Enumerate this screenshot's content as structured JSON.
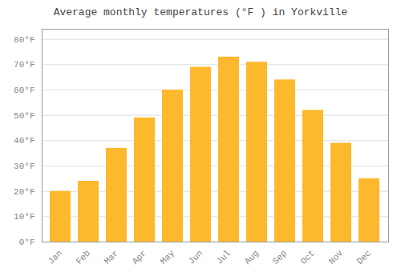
{
  "chart_data": {
    "type": "bar",
    "title": "Average monthly temperatures (°F ) in Yorkville",
    "categories": [
      "Jan",
      "Feb",
      "Mar",
      "Apr",
      "May",
      "Jun",
      "Jul",
      "Aug",
      "Sep",
      "Oct",
      "Nov",
      "Dec"
    ],
    "values": [
      20,
      24,
      37,
      49,
      60,
      69,
      73,
      71,
      64,
      52,
      39,
      25
    ],
    "color": "#FDB92E",
    "ylim": [
      0,
      84
    ],
    "yticks": [
      {
        "value": 0,
        "label": "0°F"
      },
      {
        "value": 10,
        "label": "10°F"
      },
      {
        "value": 20,
        "label": "20°F"
      },
      {
        "value": 30,
        "label": "30°F"
      },
      {
        "value": 40,
        "label": "40°F"
      },
      {
        "value": 50,
        "label": "50°F"
      },
      {
        "value": 60,
        "label": "60°F"
      },
      {
        "value": 70,
        "label": "70°F"
      },
      {
        "value": 80,
        "label": "80°F"
      }
    ],
    "grid": true
  }
}
